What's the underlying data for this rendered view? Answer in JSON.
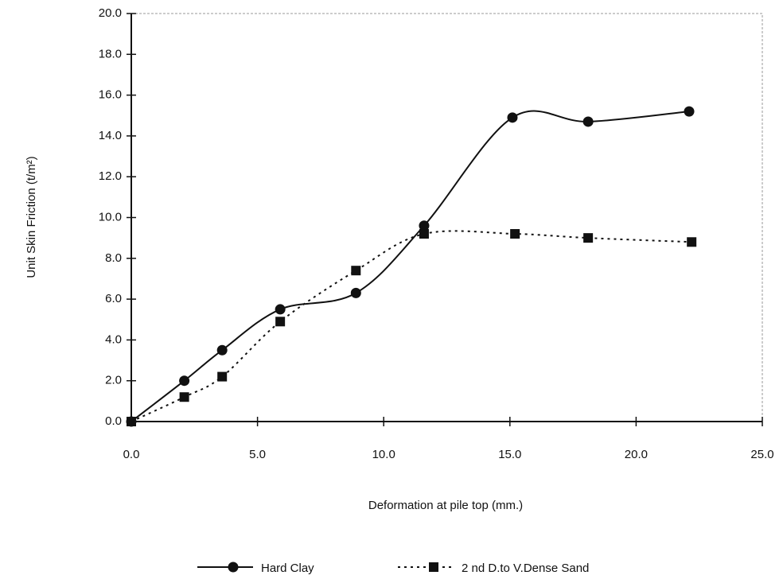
{
  "chart_data": {
    "type": "line",
    "x_label": "Deformation at pile top (mm.)",
    "y_label": "Unit Skin Friction (t/m²)",
    "xlim": [
      0,
      25
    ],
    "xticks": [
      {
        "value": 0,
        "label": "0.0"
      },
      {
        "value": 5,
        "label": "5.0"
      },
      {
        "value": 10,
        "label": "10.0"
      },
      {
        "value": 15,
        "label": "15.0"
      },
      {
        "value": 20,
        "label": "20.0"
      },
      {
        "value": 25,
        "label": "25.0"
      }
    ],
    "ylim": [
      0,
      20
    ],
    "yticks": [
      {
        "value": 0,
        "label": "0.0"
      },
      {
        "value": 2,
        "label": "2.0"
      },
      {
        "value": 4,
        "label": "4.0"
      },
      {
        "value": 6,
        "label": "6.0"
      },
      {
        "value": 8,
        "label": "8.0"
      },
      {
        "value": 10,
        "label": "10.0"
      },
      {
        "value": 12,
        "label": "12.0"
      },
      {
        "value": 14,
        "label": "14.0"
      },
      {
        "value": 16,
        "label": "16.0"
      },
      {
        "value": 18,
        "label": "18.0"
      },
      {
        "value": 20,
        "label": "20.0"
      }
    ],
    "series": [
      {
        "name": "Hard Clay",
        "color": "#111111",
        "line_style": "solid",
        "marker": "circle",
        "x": [
          0,
          2.1,
          3.6,
          5.9,
          8.9,
          11.6,
          15.1,
          18.1,
          22.1
        ],
        "values": [
          0,
          2.0,
          3.5,
          5.5,
          6.3,
          9.6,
          14.9,
          14.7,
          15.2
        ]
      },
      {
        "name": "2 nd D.to V.Dense Sand",
        "color": "#111111",
        "line_style": "dotted",
        "marker": "square",
        "x": [
          0,
          2.1,
          3.6,
          5.9,
          8.9,
          11.6,
          15.2,
          18.1,
          22.2
        ],
        "values": [
          0,
          1.2,
          2.2,
          4.9,
          7.4,
          9.2,
          9.2,
          9.0,
          8.8
        ]
      }
    ]
  }
}
